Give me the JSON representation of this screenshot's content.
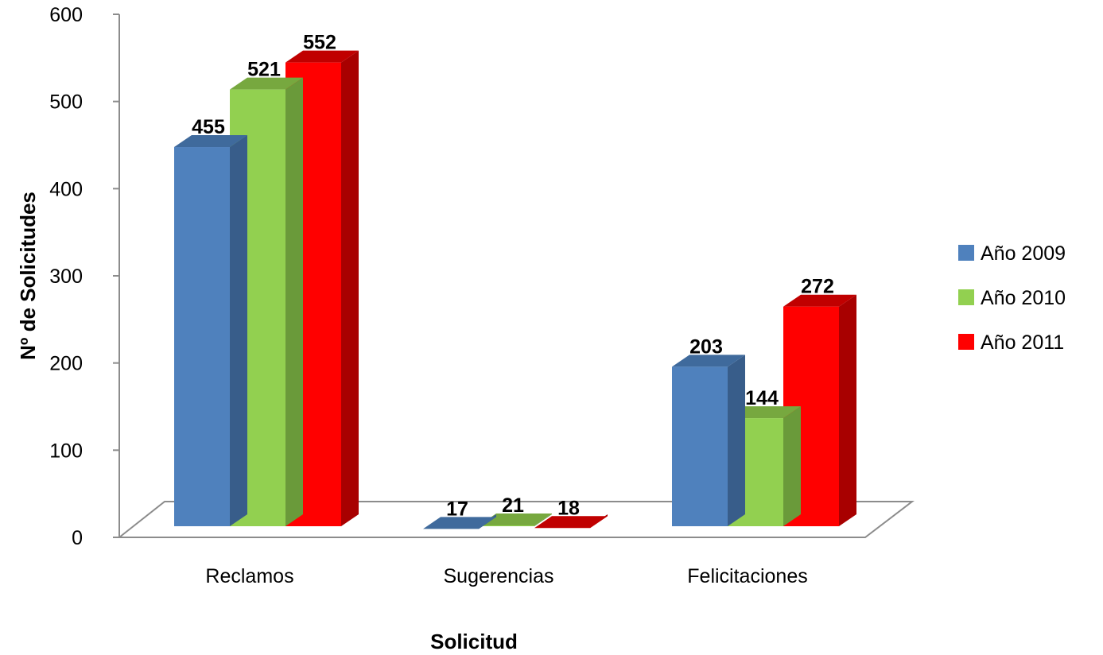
{
  "chart_data": {
    "type": "bar",
    "title": "",
    "xlabel": "Solicitud",
    "ylabel": "Nº de Solicitudes",
    "ylim": [
      0,
      600
    ],
    "yticks": [
      0,
      100,
      200,
      300,
      400,
      500,
      600
    ],
    "categories": [
      "Reclamos",
      "Sugerencias",
      "Felicitaciones"
    ],
    "series": [
      {
        "name": "Año 2009",
        "values": [
          455,
          17,
          203
        ],
        "color": "#4F81BD",
        "top": "#3F6A9C",
        "side": "#385D8A"
      },
      {
        "name": "Año 2010",
        "values": [
          521,
          21,
          144
        ],
        "color": "#92D050",
        "top": "#77A83F",
        "side": "#6A9A3A"
      },
      {
        "name": "Año 2011",
        "values": [
          552,
          18,
          272
        ],
        "color": "#FF0000",
        "top": "#C00000",
        "side": "#A80000"
      }
    ],
    "legend_position": "right",
    "grid": false,
    "style": "3d-clustered-column"
  }
}
